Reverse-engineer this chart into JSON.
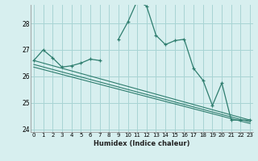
{
  "xlabel": "Humidex (Indice chaleur)",
  "background_color": "#d7efef",
  "grid_color": "#a8d4d4",
  "line_color": "#2e7d6e",
  "x_values": [
    0,
    1,
    2,
    3,
    4,
    5,
    6,
    7,
    8,
    9,
    10,
    11,
    12,
    13,
    14,
    15,
    16,
    17,
    18,
    19,
    20,
    21,
    22,
    23
  ],
  "y_main": [
    26.6,
    27.0,
    26.7,
    26.35,
    26.4,
    26.5,
    26.65,
    26.6,
    null,
    27.4,
    28.05,
    28.85,
    28.65,
    27.55,
    27.2,
    27.35,
    27.4,
    26.3,
    25.85,
    24.9,
    25.75,
    24.35,
    24.35,
    24.35
  ],
  "trend_starts": [
    26.6,
    26.45,
    26.35
  ],
  "trend_ends": [
    24.35,
    24.28,
    24.22
  ],
  "ylim": [
    23.9,
    28.7
  ],
  "yticks": [
    24,
    25,
    26,
    27,
    28
  ],
  "xticks": [
    0,
    1,
    2,
    3,
    4,
    5,
    6,
    7,
    8,
    9,
    10,
    11,
    12,
    13,
    14,
    15,
    16,
    17,
    18,
    19,
    20,
    21,
    22,
    23
  ],
  "xlim": [
    -0.3,
    23.3
  ]
}
